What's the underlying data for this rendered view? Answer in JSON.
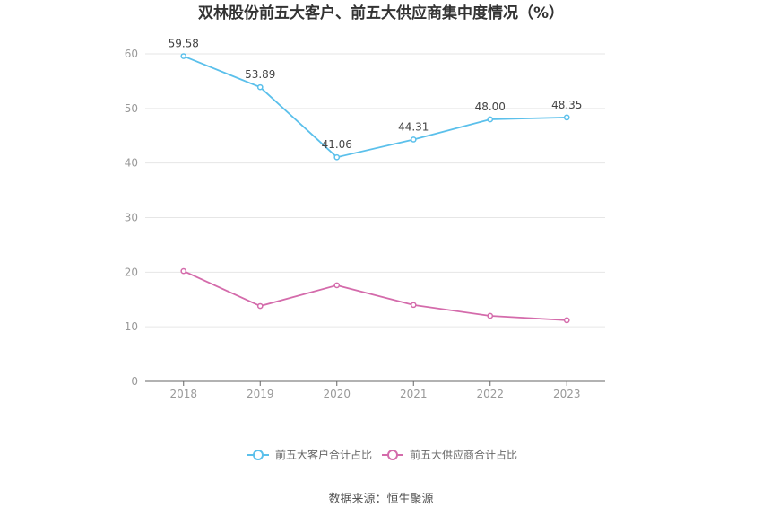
{
  "chart_data": {
    "type": "line",
    "title": "双林股份前五大客户、前五大供应商集中度情况（%）",
    "xlabel": "",
    "ylabel": "",
    "categories": [
      "2018",
      "2019",
      "2020",
      "2021",
      "2022",
      "2023"
    ],
    "ylim": [
      0,
      60
    ],
    "yticks": [
      0,
      10,
      20,
      30,
      40,
      50,
      60
    ],
    "grid": true,
    "legend_position": "bottom",
    "series": [
      {
        "name": "前五大客户合计占比",
        "values": [
          59.58,
          53.89,
          41.06,
          44.31,
          48.0,
          48.35
        ],
        "labels": [
          "59.58",
          "53.89",
          "41.06",
          "44.31",
          "48.00",
          "48.35"
        ],
        "color": "#5bc0eb"
      },
      {
        "name": "前五大供应商合计占比",
        "values": [
          20.2,
          13.8,
          17.6,
          14.0,
          12.0,
          11.2
        ],
        "labels": [],
        "color": "#d46bab"
      }
    ],
    "source": "数据来源：恒生聚源"
  }
}
